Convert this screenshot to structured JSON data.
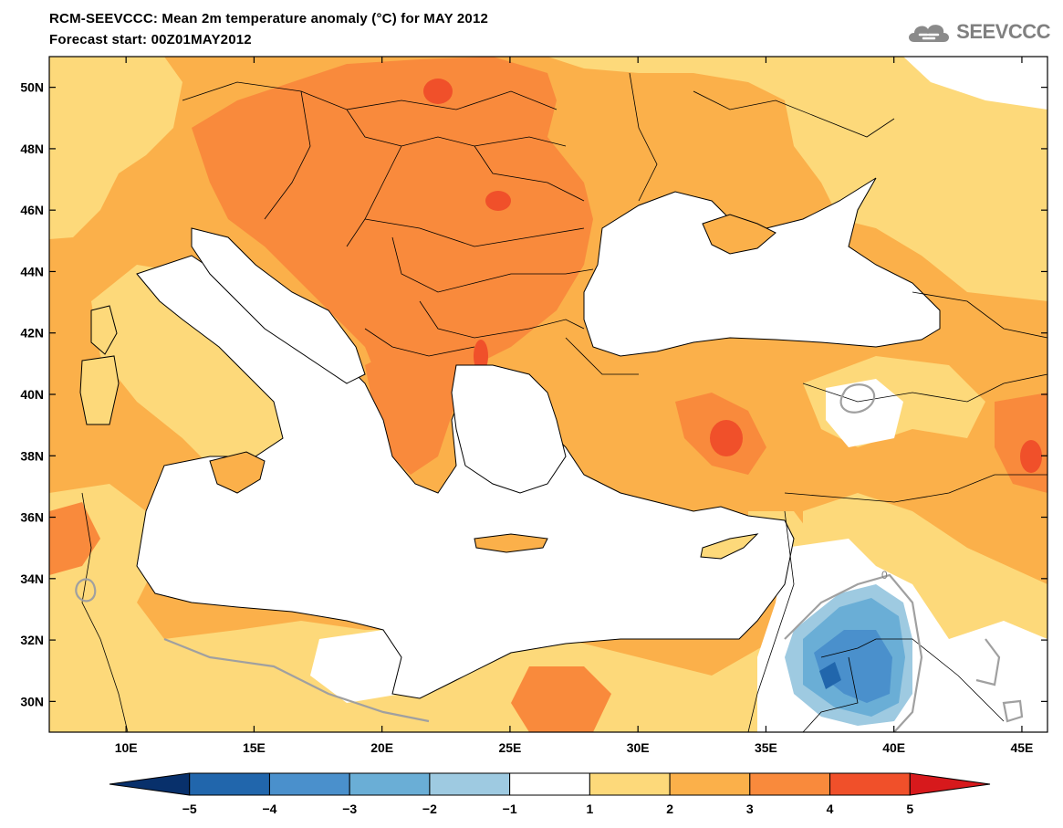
{
  "title": {
    "line1": "RCM-SEEVCCC: Mean 2m temperature anomaly (°C) for MAY 2012",
    "line2": "Forecast start: 00Z01MAY2012"
  },
  "logo": {
    "text": "SEEVCCC",
    "icon": "cloud-icon"
  },
  "map": {
    "lon_range": [
      7,
      46
    ],
    "lat_range": [
      29,
      51
    ],
    "lat_ticks": [
      {
        "value": 50,
        "label": "50N"
      },
      {
        "value": 48,
        "label": "48N"
      },
      {
        "value": 46,
        "label": "46N"
      },
      {
        "value": 44,
        "label": "44N"
      },
      {
        "value": 42,
        "label": "42N"
      },
      {
        "value": 40,
        "label": "40N"
      },
      {
        "value": 38,
        "label": "38N"
      },
      {
        "value": 36,
        "label": "36N"
      },
      {
        "value": 34,
        "label": "34N"
      },
      {
        "value": 32,
        "label": "32N"
      },
      {
        "value": 30,
        "label": "30N"
      }
    ],
    "lon_ticks": [
      {
        "value": 10,
        "label": "10E"
      },
      {
        "value": 15,
        "label": "15E"
      },
      {
        "value": 20,
        "label": "20E"
      },
      {
        "value": 25,
        "label": "25E"
      },
      {
        "value": 30,
        "label": "30E"
      },
      {
        "value": 35,
        "label": "35E"
      },
      {
        "value": 40,
        "label": "40E"
      },
      {
        "value": 45,
        "label": "45E"
      }
    ],
    "contour_label": "0"
  },
  "colorbar": {
    "colors": [
      "#08306b",
      "#2166ac",
      "#4a90cc",
      "#6aaed6",
      "#9ecae1",
      "#ffffff",
      "#fdd97a",
      "#fbb04a",
      "#f98a3c",
      "#f0502a",
      "#d7191c"
    ],
    "labels": [
      "−5",
      "−4",
      "−3",
      "−2",
      "−1",
      "1",
      "2",
      "3",
      "4",
      "5"
    ]
  }
}
